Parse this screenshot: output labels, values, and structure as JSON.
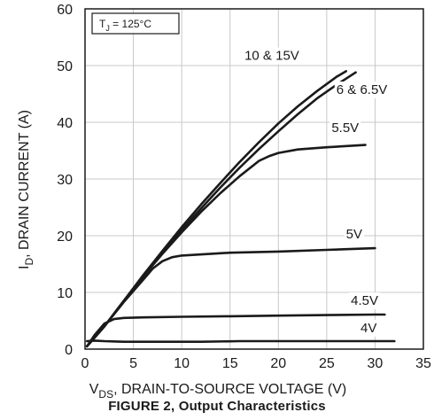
{
  "chart_data": {
    "type": "line",
    "caption": "FIGURE 2,  Output  Characteristics",
    "ylabel_main": "I",
    "ylabel_sub": "D",
    "ylabel_rest": ", DRAIN CURRENT (A)",
    "xlabel_main": "V",
    "xlabel_sub": "DS",
    "xlabel_rest": ", DRAIN-TO-SOURCE VOLTAGE (V)",
    "condition_main": "T",
    "condition_sub": "J",
    "condition_rest": " = 125°C",
    "xlim": [
      0,
      35
    ],
    "ylim": [
      0,
      60
    ],
    "xticks": [
      "0",
      "5",
      "10",
      "15",
      "20",
      "25",
      "30",
      "35"
    ],
    "yticks": [
      "0",
      "10",
      "20",
      "30",
      "40",
      "50",
      "60"
    ],
    "grid": true,
    "series": [
      {
        "name": "10 & 15V",
        "points": [
          [
            0.2,
            0.5
          ],
          [
            2,
            4
          ],
          [
            4,
            8.5
          ],
          [
            6,
            13
          ],
          [
            8,
            17.3
          ],
          [
            10,
            21.5
          ],
          [
            12,
            25.5
          ],
          [
            14,
            29.3
          ],
          [
            16,
            33
          ],
          [
            18,
            36.5
          ],
          [
            20,
            39.8
          ],
          [
            22,
            42.8
          ],
          [
            24,
            45.5
          ],
          [
            26,
            48
          ],
          [
            27,
            49
          ]
        ]
      },
      {
        "name": "6 & 6.5V",
        "points": [
          [
            0.2,
            0.5
          ],
          [
            2,
            4
          ],
          [
            4,
            8.5
          ],
          [
            6,
            12.9
          ],
          [
            8,
            17
          ],
          [
            10,
            21
          ],
          [
            12,
            24.8
          ],
          [
            14,
            28.5
          ],
          [
            16,
            32
          ],
          [
            18,
            35.3
          ],
          [
            20,
            38.4
          ],
          [
            22,
            41.4
          ],
          [
            24,
            44.2
          ],
          [
            26,
            46.6
          ],
          [
            28,
            48.8
          ]
        ]
      },
      {
        "name": "5.5V",
        "points": [
          [
            0.2,
            0.5
          ],
          [
            2,
            4
          ],
          [
            4,
            8.5
          ],
          [
            6,
            12.8
          ],
          [
            8,
            16.8
          ],
          [
            10,
            20.6
          ],
          [
            12,
            24.2
          ],
          [
            14,
            27.5
          ],
          [
            16,
            30.5
          ],
          [
            18,
            33.2
          ],
          [
            19,
            34
          ],
          [
            20,
            34.6
          ],
          [
            22,
            35.2
          ],
          [
            25,
            35.6
          ],
          [
            29,
            36
          ]
        ]
      },
      {
        "name": "5V",
        "points": [
          [
            0.2,
            0.5
          ],
          [
            2,
            4
          ],
          [
            4,
            8.3
          ],
          [
            6,
            12.2
          ],
          [
            7,
            14.2
          ],
          [
            8,
            15.5
          ],
          [
            9,
            16.2
          ],
          [
            10,
            16.5
          ],
          [
            15,
            17
          ],
          [
            20,
            17.2
          ],
          [
            25,
            17.5
          ],
          [
            30,
            17.8
          ]
        ]
      },
      {
        "name": "4.5V",
        "points": [
          [
            0.2,
            0.5
          ],
          [
            1,
            2.5
          ],
          [
            2,
            4.5
          ],
          [
            3,
            5.3
          ],
          [
            4,
            5.5
          ],
          [
            6,
            5.6
          ],
          [
            10,
            5.7
          ],
          [
            15,
            5.8
          ],
          [
            20,
            5.9
          ],
          [
            25,
            6
          ],
          [
            30,
            6.1
          ],
          [
            31,
            6.1
          ]
        ]
      },
      {
        "name": "4V",
        "points": [
          [
            0.2,
            1.4
          ],
          [
            1,
            1.5
          ],
          [
            2,
            1.4
          ],
          [
            4,
            1.3
          ],
          [
            8,
            1.3
          ],
          [
            12,
            1.3
          ],
          [
            16,
            1.4
          ],
          [
            20,
            1.4
          ],
          [
            24,
            1.4
          ],
          [
            28,
            1.4
          ],
          [
            32,
            1.4
          ]
        ]
      }
    ],
    "curve_labels": [
      {
        "text": "10 & 15V",
        "x": 16.5,
        "y": 51
      },
      {
        "text": "6 & 6.5V",
        "x": 26,
        "y": 45
      },
      {
        "text": "5.5V",
        "x": 25.5,
        "y": 38.3
      },
      {
        "text": "5V",
        "x": 27,
        "y": 19.5
      },
      {
        "text": "4.5V",
        "x": 27.5,
        "y": 7.8
      },
      {
        "text": "4V",
        "x": 28.5,
        "y": 3
      }
    ]
  }
}
